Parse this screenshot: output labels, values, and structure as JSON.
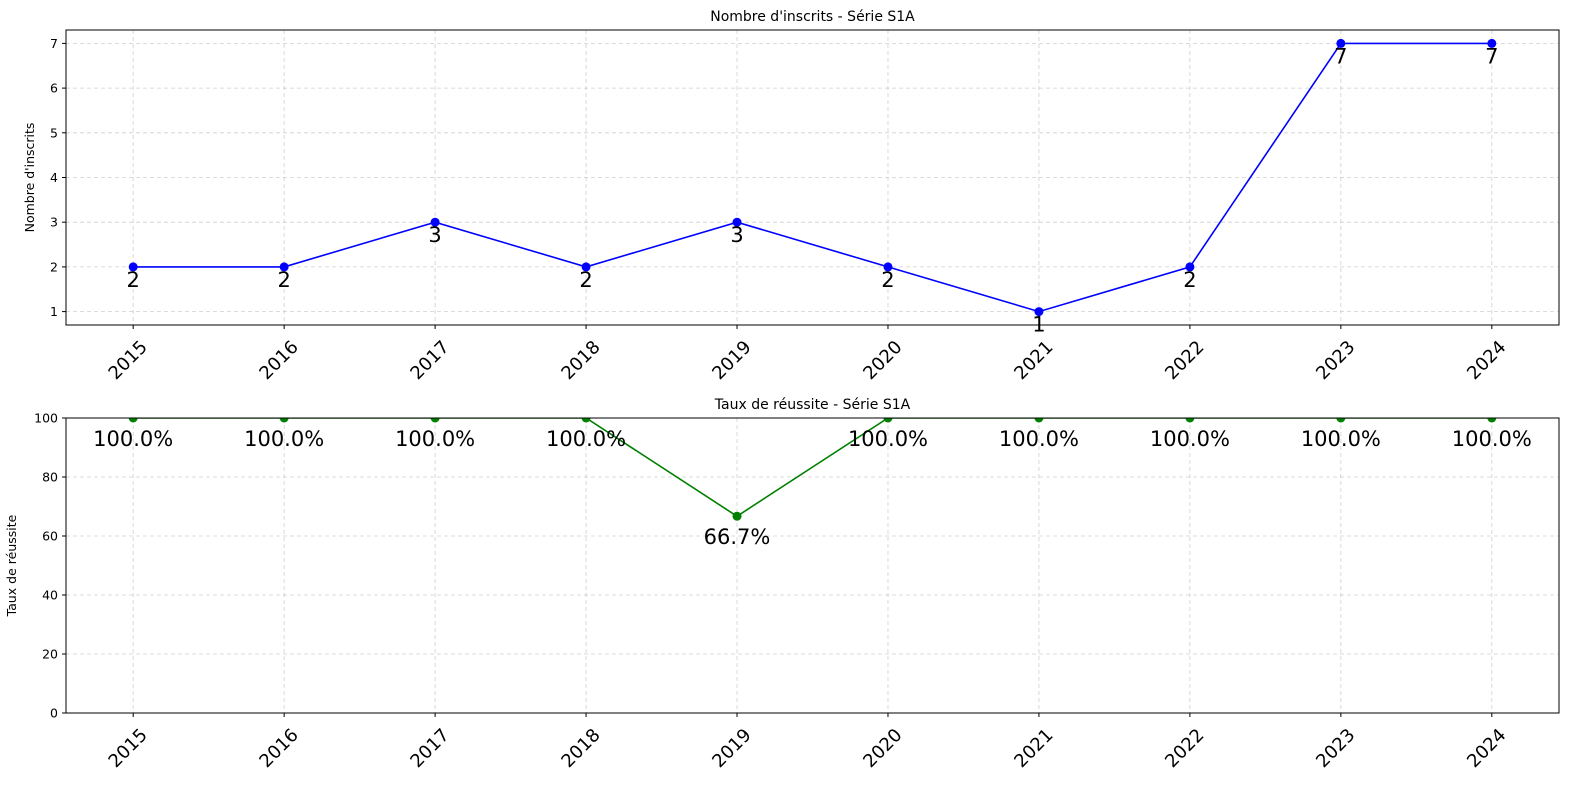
{
  "chart_data": [
    {
      "type": "line",
      "title": "Nombre d'inscrits - Série S1A",
      "xlabel": "",
      "ylabel": "Nombre d'inscrits",
      "x": [
        "2015",
        "2016",
        "2017",
        "2018",
        "2019",
        "2020",
        "2021",
        "2022",
        "2023",
        "2024"
      ],
      "values": [
        2,
        2,
        3,
        2,
        3,
        2,
        1,
        2,
        7,
        7
      ],
      "data_labels": [
        "2",
        "2",
        "3",
        "2",
        "3",
        "2",
        "1",
        "2",
        "7",
        "7"
      ],
      "y_ticks": [
        1,
        2,
        3,
        4,
        5,
        6,
        7
      ],
      "ylim": [
        0.7,
        7.3
      ],
      "color": "#0000ff",
      "grid": true
    },
    {
      "type": "line",
      "title": "Taux de réussite - Série S1A",
      "xlabel": "",
      "ylabel": "Taux de réussite",
      "x": [
        "2015",
        "2016",
        "2017",
        "2018",
        "2019",
        "2020",
        "2021",
        "2022",
        "2023",
        "2024"
      ],
      "values": [
        100,
        100,
        100,
        100,
        66.7,
        100,
        100,
        100,
        100,
        100
      ],
      "data_labels": [
        "100.0%",
        "100.0%",
        "100.0%",
        "100.0%",
        "66.7%",
        "100.0%",
        "100.0%",
        "100.0%",
        "100.0%",
        "100.0%"
      ],
      "y_ticks": [
        0,
        20,
        40,
        60,
        80,
        100
      ],
      "ylim": [
        0,
        100
      ],
      "color": "#008000",
      "grid": true
    }
  ]
}
